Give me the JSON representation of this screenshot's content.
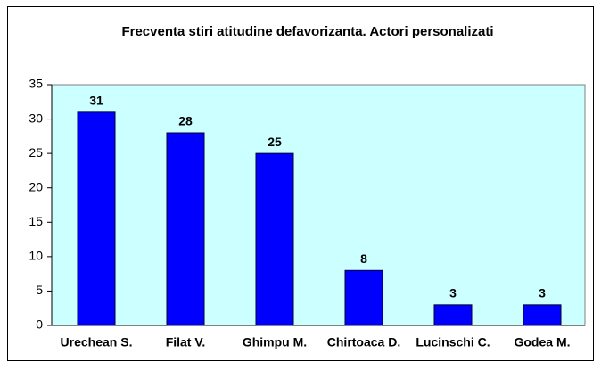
{
  "chart_data": {
    "type": "bar",
    "title": "Frecventa stiri atitudine defavorizanta. Actori personalizati",
    "categories": [
      "Urechean S.",
      "Filat V.",
      "Ghimpu M.",
      "Chirtoaca D.",
      "Lucinschi C.",
      "Godea M."
    ],
    "values": [
      31,
      28,
      25,
      8,
      3,
      3
    ],
    "color": "#0000ff",
    "ylim": [
      0,
      35
    ],
    "yticks": [
      0,
      5,
      10,
      15,
      20,
      25,
      30,
      35
    ],
    "grid": false
  }
}
